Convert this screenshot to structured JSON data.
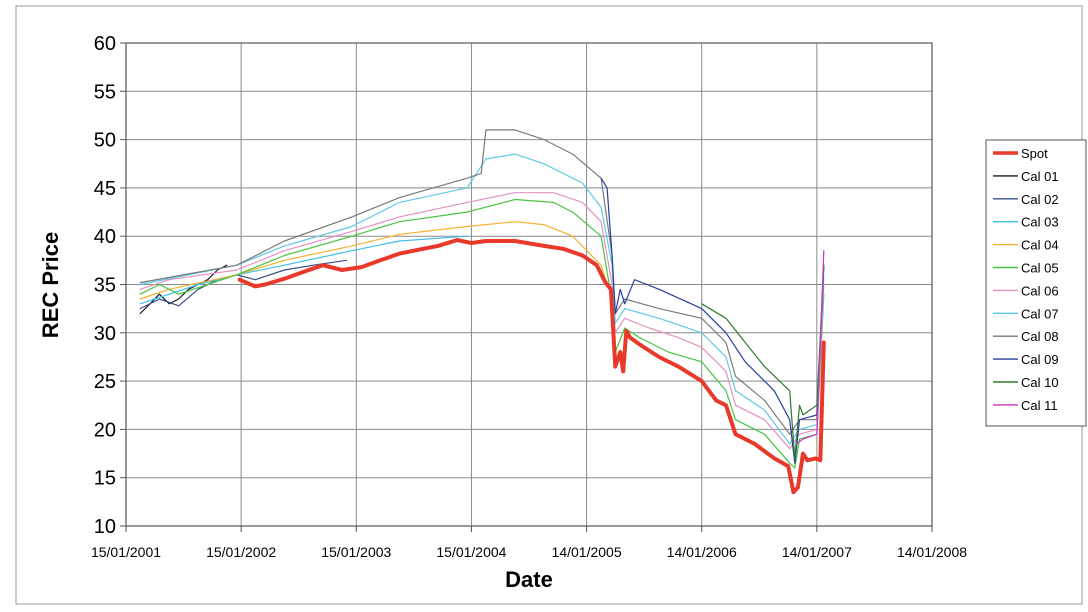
{
  "chart_data": {
    "type": "line",
    "title": "",
    "xlabel": "Date",
    "ylabel": "REC Price",
    "ylim": [
      10,
      60
    ],
    "yticks": [
      10,
      15,
      20,
      25,
      30,
      35,
      40,
      45,
      50,
      55,
      60
    ],
    "xlim": [
      "2001-01-15",
      "2008-01-14"
    ],
    "xtick_labels": [
      "15/01/2001",
      "15/01/2002",
      "15/01/2003",
      "15/01/2004",
      "14/01/2005",
      "14/01/2006",
      "14/01/2007",
      "14/01/2008"
    ],
    "xtick_dates": [
      "2001-01-15",
      "2002-01-15",
      "2003-01-15",
      "2004-01-15",
      "2005-01-14",
      "2006-01-14",
      "2007-01-14",
      "2008-01-14"
    ],
    "grid": true,
    "legend_position": "right",
    "series": [
      {
        "name": "Spot",
        "color": "#e8392a",
        "width": 4,
        "points": [
          [
            "2002-01-10",
            35.5
          ],
          [
            "2002-03-01",
            34.8
          ],
          [
            "2002-04-01",
            35
          ],
          [
            "2002-06-01",
            35.6
          ],
          [
            "2002-08-01",
            36.3
          ],
          [
            "2002-10-01",
            37
          ],
          [
            "2002-12-01",
            36.5
          ],
          [
            "2003-02-01",
            36.8
          ],
          [
            "2003-04-01",
            37.5
          ],
          [
            "2003-06-01",
            38.2
          ],
          [
            "2003-08-01",
            38.6
          ],
          [
            "2003-10-01",
            39
          ],
          [
            "2003-12-01",
            39.6
          ],
          [
            "2004-01-15",
            39.3
          ],
          [
            "2004-03-01",
            39.5
          ],
          [
            "2004-06-01",
            39.5
          ],
          [
            "2004-09-01",
            39
          ],
          [
            "2004-11-01",
            38.7
          ],
          [
            "2005-01-01",
            38
          ],
          [
            "2005-02-15",
            37
          ],
          [
            "2005-03-15",
            35.2
          ],
          [
            "2005-04-01",
            34.5
          ],
          [
            "2005-04-15",
            26.5
          ],
          [
            "2005-05-01",
            28
          ],
          [
            "2005-05-10",
            26
          ],
          [
            "2005-05-20",
            30.2
          ],
          [
            "2005-06-01",
            29.5
          ],
          [
            "2005-07-01",
            28.8
          ],
          [
            "2005-09-01",
            27.5
          ],
          [
            "2005-11-01",
            26.5
          ],
          [
            "2006-01-14",
            25
          ],
          [
            "2006-03-01",
            23
          ],
          [
            "2006-04-01",
            22.5
          ],
          [
            "2006-05-01",
            19.5
          ],
          [
            "2006-07-01",
            18.5
          ],
          [
            "2006-09-01",
            17
          ],
          [
            "2006-10-15",
            16.2
          ],
          [
            "2006-11-01",
            13.5
          ],
          [
            "2006-11-15",
            14
          ],
          [
            "2006-12-01",
            17.5
          ],
          [
            "2006-12-15",
            16.8
          ],
          [
            "2007-01-10",
            17
          ],
          [
            "2007-01-25",
            16.8
          ],
          [
            "2007-02-05",
            29
          ]
        ]
      },
      {
        "name": "Cal 01",
        "color": "#1a1a1a",
        "width": 1.2,
        "points": [
          [
            "2001-03-01",
            32
          ],
          [
            "2001-04-01",
            33
          ],
          [
            "2001-05-01",
            34
          ],
          [
            "2001-06-01",
            33
          ],
          [
            "2001-07-01",
            33.5
          ],
          [
            "2001-08-01",
            34.5
          ],
          [
            "2001-09-01",
            35
          ],
          [
            "2001-10-01",
            35.5
          ],
          [
            "2001-11-01",
            36.5
          ],
          [
            "2001-12-01",
            37
          ]
        ]
      },
      {
        "name": "Cal 02",
        "color": "#35508a",
        "width": 1.2,
        "points": [
          [
            "2001-03-01",
            32.5
          ],
          [
            "2001-05-01",
            33.5
          ],
          [
            "2001-07-01",
            32.8
          ],
          [
            "2001-09-01",
            34.5
          ],
          [
            "2001-11-01",
            35.5
          ],
          [
            "2002-01-01",
            36
          ],
          [
            "2002-03-01",
            35.5
          ],
          [
            "2002-06-01",
            36.5
          ],
          [
            "2002-09-01",
            37
          ],
          [
            "2002-12-15",
            37.5
          ]
        ]
      },
      {
        "name": "Cal 03",
        "color": "#3fbfe8",
        "width": 1.2,
        "points": [
          [
            "2001-03-01",
            33
          ],
          [
            "2001-06-01",
            34
          ],
          [
            "2001-09-01",
            35
          ],
          [
            "2002-01-01",
            36
          ],
          [
            "2002-06-01",
            37
          ],
          [
            "2003-01-01",
            38.5
          ],
          [
            "2003-06-01",
            39.5
          ],
          [
            "2003-12-31",
            40
          ]
        ]
      },
      {
        "name": "Cal 04",
        "color": "#f2b232",
        "width": 1.2,
        "points": [
          [
            "2001-03-01",
            33.5
          ],
          [
            "2001-06-01",
            34.5
          ],
          [
            "2002-01-01",
            36
          ],
          [
            "2002-06-01",
            37.5
          ],
          [
            "2003-01-01",
            39
          ],
          [
            "2003-06-01",
            40.2
          ],
          [
            "2004-01-01",
            41
          ],
          [
            "2004-06-01",
            41.5
          ],
          [
            "2004-09-01",
            41.2
          ],
          [
            "2004-12-01",
            40
          ],
          [
            "2005-03-01",
            37
          ],
          [
            "2005-03-15",
            35.5
          ]
        ]
      },
      {
        "name": "Cal 05",
        "color": "#47c43f",
        "width": 1.2,
        "points": [
          [
            "2001-03-01",
            34
          ],
          [
            "2001-05-01",
            35
          ],
          [
            "2001-07-01",
            34
          ],
          [
            "2002-01-01",
            36
          ],
          [
            "2002-06-01",
            38
          ],
          [
            "2003-01-01",
            40
          ],
          [
            "2003-06-01",
            41.5
          ],
          [
            "2004-01-01",
            42.5
          ],
          [
            "2004-06-01",
            43.8
          ],
          [
            "2004-10-01",
            43.5
          ],
          [
            "2004-12-01",
            42.5
          ],
          [
            "2005-03-01",
            40
          ],
          [
            "2005-04-01",
            34
          ],
          [
            "2005-04-15",
            28
          ],
          [
            "2005-05-15",
            30.5
          ],
          [
            "2005-07-01",
            29.5
          ],
          [
            "2005-10-01",
            28
          ],
          [
            "2006-01-14",
            27
          ],
          [
            "2006-04-01",
            24
          ],
          [
            "2006-05-01",
            21
          ],
          [
            "2006-08-01",
            19.5
          ],
          [
            "2006-10-20",
            16.5
          ],
          [
            "2006-11-05",
            16
          ],
          [
            "2006-11-20",
            19
          ],
          [
            "2007-01-14",
            19.5
          ],
          [
            "2007-02-05",
            34
          ]
        ]
      },
      {
        "name": "Cal 06",
        "color": "#e392c2",
        "width": 1.2,
        "points": [
          [
            "2001-03-01",
            34.5
          ],
          [
            "2001-06-01",
            35.5
          ],
          [
            "2002-01-01",
            36.5
          ],
          [
            "2002-06-01",
            38.5
          ],
          [
            "2003-01-01",
            40.5
          ],
          [
            "2003-06-01",
            42
          ],
          [
            "2004-01-01",
            43.5
          ],
          [
            "2004-06-01",
            44.5
          ],
          [
            "2004-10-01",
            44.5
          ],
          [
            "2005-01-01",
            43.5
          ],
          [
            "2005-03-01",
            41.5
          ],
          [
            "2005-04-05",
            35
          ],
          [
            "2005-04-15",
            30
          ],
          [
            "2005-05-15",
            31.5
          ],
          [
            "2005-08-01",
            30.5
          ],
          [
            "2005-11-01",
            29.5
          ],
          [
            "2006-01-14",
            28.5
          ],
          [
            "2006-04-01",
            26
          ],
          [
            "2006-05-01",
            22.5
          ],
          [
            "2006-08-01",
            21
          ],
          [
            "2006-10-20",
            18
          ],
          [
            "2006-11-20",
            19.5
          ],
          [
            "2007-01-14",
            20
          ],
          [
            "2007-02-05",
            35
          ]
        ]
      },
      {
        "name": "Cal 07",
        "color": "#5fc8e6",
        "width": 1.2,
        "points": [
          [
            "2001-03-01",
            35
          ],
          [
            "2002-01-01",
            37
          ],
          [
            "2002-06-01",
            39
          ],
          [
            "2003-01-01",
            41
          ],
          [
            "2003-06-01",
            43.5
          ],
          [
            "2004-01-01",
            45
          ],
          [
            "2004-03-01",
            48
          ],
          [
            "2004-06-01",
            48.5
          ],
          [
            "2004-09-01",
            47.5
          ],
          [
            "2005-01-01",
            45.5
          ],
          [
            "2005-03-01",
            43
          ],
          [
            "2005-04-05",
            37
          ],
          [
            "2005-04-15",
            31
          ],
          [
            "2005-05-15",
            32.5
          ],
          [
            "2005-09-01",
            31.5
          ],
          [
            "2006-01-14",
            30
          ],
          [
            "2006-04-01",
            27.5
          ],
          [
            "2006-05-01",
            24
          ],
          [
            "2006-08-01",
            22
          ],
          [
            "2006-10-20",
            18.5
          ],
          [
            "2006-11-20",
            20
          ],
          [
            "2007-01-14",
            20.5
          ],
          [
            "2007-02-05",
            36
          ]
        ]
      },
      {
        "name": "Cal 08",
        "color": "#7a7a7a",
        "width": 1.2,
        "points": [
          [
            "2001-03-01",
            35.2
          ],
          [
            "2002-01-01",
            37
          ],
          [
            "2002-06-01",
            39.5
          ],
          [
            "2003-01-01",
            42
          ],
          [
            "2003-06-01",
            44
          ],
          [
            "2004-01-01",
            46
          ],
          [
            "2004-02-15",
            46.5
          ],
          [
            "2004-03-01",
            51
          ],
          [
            "2004-06-01",
            51
          ],
          [
            "2004-09-01",
            50
          ],
          [
            "2004-12-01",
            48.5
          ],
          [
            "2005-03-01",
            46
          ],
          [
            "2005-04-05",
            38
          ],
          [
            "2005-04-15",
            32
          ],
          [
            "2005-05-15",
            33.5
          ],
          [
            "2005-09-01",
            32.5
          ],
          [
            "2006-01-14",
            31.5
          ],
          [
            "2006-04-01",
            29
          ],
          [
            "2006-05-01",
            25.5
          ],
          [
            "2006-08-01",
            23
          ],
          [
            "2006-10-20",
            19.5
          ],
          [
            "2006-11-20",
            21
          ],
          [
            "2007-01-14",
            21
          ],
          [
            "2007-02-05",
            37
          ]
        ]
      },
      {
        "name": "Cal 09",
        "color": "#2a3f9e",
        "width": 1.2,
        "points": [
          [
            "2005-03-01",
            46
          ],
          [
            "2005-03-20",
            45
          ],
          [
            "2005-04-05",
            38
          ],
          [
            "2005-04-15",
            32
          ],
          [
            "2005-05-01",
            34.5
          ],
          [
            "2005-05-15",
            33
          ],
          [
            "2005-06-15",
            35.5
          ],
          [
            "2005-09-01",
            34.5
          ],
          [
            "2006-01-14",
            32.5
          ],
          [
            "2006-04-01",
            30
          ],
          [
            "2006-06-01",
            27
          ],
          [
            "2006-09-01",
            24
          ],
          [
            "2006-10-20",
            21
          ],
          [
            "2006-11-05",
            16.5
          ],
          [
            "2006-11-20",
            21
          ],
          [
            "2007-01-14",
            21.5
          ],
          [
            "2007-02-05",
            37
          ]
        ]
      },
      {
        "name": "Cal 10",
        "color": "#2e7a2e",
        "width": 1.2,
        "points": [
          [
            "2006-01-14",
            33
          ],
          [
            "2006-04-01",
            31.5
          ],
          [
            "2006-06-01",
            29
          ],
          [
            "2006-08-01",
            26.5
          ],
          [
            "2006-10-20",
            24
          ],
          [
            "2006-11-05",
            17
          ],
          [
            "2006-11-20",
            22.5
          ],
          [
            "2006-12-01",
            21.5
          ],
          [
            "2007-01-14",
            22.5
          ],
          [
            "2007-02-05",
            37
          ]
        ]
      },
      {
        "name": "Cal 11",
        "color": "#cc33cc",
        "width": 1.2,
        "points": [
          [
            "2006-11-10",
            18.5
          ],
          [
            "2006-12-01",
            19
          ],
          [
            "2007-01-14",
            19.5
          ],
          [
            "2007-02-05",
            38.5
          ]
        ]
      }
    ]
  }
}
